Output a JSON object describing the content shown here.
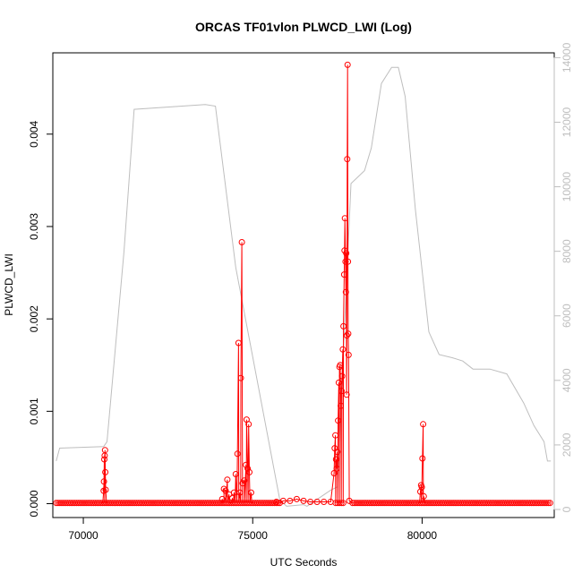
{
  "chart_data": {
    "type": "line",
    "title": "ORCAS TF01vlon PLWCD_LWI (Log)",
    "xlabel": "UTC Seconds",
    "ylabel": "PLWCD_LWI",
    "xlim": [
      69100,
      83900
    ],
    "ylim": [
      -0.00015,
      0.00488
    ],
    "xticks": [
      70000,
      75000,
      80000
    ],
    "xtick_labels": [
      "70000",
      "75000",
      "80000"
    ],
    "yticks": [
      0.0,
      0.001,
      0.002,
      0.003,
      0.004
    ],
    "ytick_labels": [
      "0.000",
      "0.001",
      "0.002",
      "0.003",
      "0.004"
    ],
    "y2lim": [
      -250,
      14150
    ],
    "y2ticks": [
      0,
      2000,
      4000,
      6000,
      8000,
      10000,
      12000,
      14000
    ],
    "y2tick_labels": [
      "0",
      "2000",
      "4000",
      "6000",
      "8000",
      "10000",
      "12000",
      "14000"
    ],
    "colors": {
      "primary": "#ff0000",
      "secondary": "#bebebe"
    },
    "series": [
      {
        "axis": "left",
        "color": "#ff0000",
        "baseline": 8e-06,
        "baseline_range": [
          69200,
          83800
        ],
        "baseline_gaps": [
          [
            75800,
            77400
          ],
          [
            77700,
            77900
          ]
        ],
        "spikes": [
          [
            70600,
            0.00014
          ],
          [
            70610,
            0.00024
          ],
          [
            70620,
            0.00048
          ],
          [
            70630,
            0.00052
          ],
          [
            70640,
            0.00058
          ],
          [
            70650,
            0.00034
          ],
          [
            70660,
            0.00015
          ],
          [
            74100,
            5e-05
          ],
          [
            74150,
            0.00016
          ],
          [
            74200,
            0.00014
          ],
          [
            74250,
            0.00026
          ],
          [
            74300,
            0.0001
          ],
          [
            74400,
            6e-05
          ],
          [
            74450,
            0.00012
          ],
          [
            74500,
            0.00032
          ],
          [
            74550,
            0.00054
          ],
          [
            74580,
            0.00174
          ],
          [
            74620,
            0.00012
          ],
          [
            74650,
            0.00136
          ],
          [
            74680,
            0.00283
          ],
          [
            74700,
            0.00022
          ],
          [
            74750,
            0.00025
          ],
          [
            74800,
            0.00042
          ],
          [
            74820,
            0.00091
          ],
          [
            74850,
            0.00038
          ],
          [
            74880,
            0.00086
          ],
          [
            74900,
            0.00034
          ],
          [
            74950,
            0.00012
          ],
          [
            75700,
            2e-05
          ],
          [
            75900,
            3e-05
          ],
          [
            76100,
            3e-05
          ],
          [
            76300,
            5e-05
          ],
          [
            76500,
            3e-05
          ],
          [
            76700,
            2e-05
          ],
          [
            76900,
            2e-05
          ],
          [
            77100,
            2e-05
          ],
          [
            77300,
            2e-05
          ],
          [
            77400,
            0.00033
          ],
          [
            77420,
            0.0006
          ],
          [
            77440,
            0.00074
          ],
          [
            77460,
            0.00048
          ],
          [
            77480,
            0.00038
          ],
          [
            77500,
            0.00056
          ],
          [
            77520,
            0.0009
          ],
          [
            77540,
            0.00131
          ],
          [
            77560,
            0.00148
          ],
          [
            77580,
            0.0015
          ],
          [
            77600,
            0.00106
          ],
          [
            77620,
            0.00122
          ],
          [
            77640,
            0.00138
          ],
          [
            77660,
            0.00167
          ],
          [
            77680,
            0.00192
          ],
          [
            77700,
            0.00248
          ],
          [
            77710,
            0.00274
          ],
          [
            77720,
            0.00309
          ],
          [
            77740,
            0.00262
          ],
          [
            77750,
            0.00229
          ],
          [
            77760,
            0.00271
          ],
          [
            77770,
            0.00118
          ],
          [
            77780,
            0.00182
          ],
          [
            77790,
            0.00373
          ],
          [
            77800,
            0.00475
          ],
          [
            77810,
            0.00262
          ],
          [
            77820,
            0.00184
          ],
          [
            77830,
            0.00161
          ],
          [
            77850,
            3e-05
          ],
          [
            79950,
            0.00013
          ],
          [
            79970,
            0.0002
          ],
          [
            79990,
            0.00018
          ],
          [
            80010,
            0.00049
          ],
          [
            80030,
            0.00086
          ],
          [
            80050,
            8e-05
          ]
        ]
      },
      {
        "axis": "right",
        "color": "#bebebe",
        "x": [
          69200,
          69300,
          70600,
          70700,
          71200,
          71500,
          73600,
          73900,
          74500,
          75800,
          76000,
          76500,
          76600,
          77300,
          77500,
          77900,
          78300,
          78500,
          78800,
          79100,
          79300,
          79500,
          79800,
          80200,
          80500,
          80900,
          81200,
          81500,
          82000,
          82500,
          83000,
          83300,
          83600,
          83700,
          83800
        ],
        "y": [
          1500,
          1900,
          1950,
          2100,
          8000,
          12400,
          12550,
          12500,
          7500,
          300,
          100,
          150,
          100,
          600,
          700,
          10100,
          10500,
          11200,
          13200,
          13700,
          13700,
          12800,
          9300,
          5500,
          4800,
          4700,
          4600,
          4350,
          4350,
          4200,
          3300,
          2600,
          2100,
          1500,
          1500
        ]
      }
    ]
  }
}
